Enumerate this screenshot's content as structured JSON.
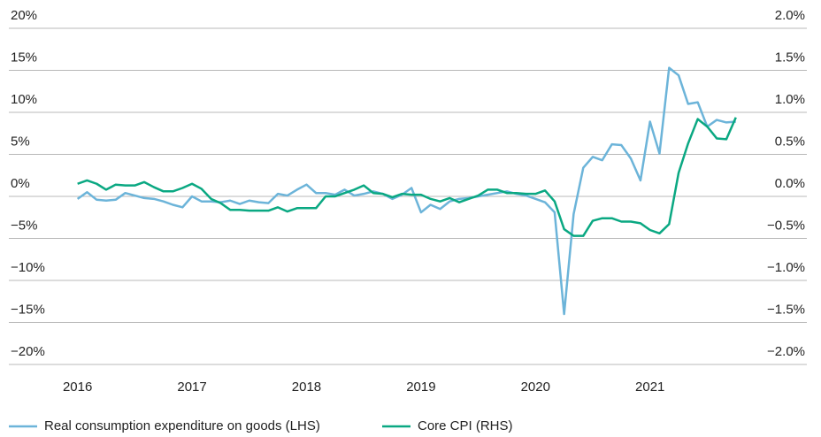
{
  "chart_data": {
    "type": "line",
    "x": [
      2016.0,
      2016.083,
      2016.167,
      2016.25,
      2016.333,
      2016.417,
      2016.5,
      2016.583,
      2016.667,
      2016.75,
      2016.833,
      2016.917,
      2017.0,
      2017.083,
      2017.167,
      2017.25,
      2017.333,
      2017.417,
      2017.5,
      2017.583,
      2017.667,
      2017.75,
      2017.833,
      2017.917,
      2018.0,
      2018.083,
      2018.167,
      2018.25,
      2018.333,
      2018.417,
      2018.5,
      2018.583,
      2018.667,
      2018.75,
      2018.833,
      2018.917,
      2019.0,
      2019.083,
      2019.167,
      2019.25,
      2019.333,
      2019.417,
      2019.5,
      2019.583,
      2019.667,
      2019.75,
      2019.833,
      2019.917,
      2020.0,
      2020.083,
      2020.167,
      2020.25,
      2020.333,
      2020.417,
      2020.5,
      2020.583,
      2020.667,
      2020.75,
      2020.833,
      2020.917,
      2021.0,
      2021.083,
      2021.167,
      2021.25,
      2021.333,
      2021.417,
      2021.5,
      2021.583,
      2021.667,
      2021.75
    ],
    "series": [
      {
        "name": "Real consumption expenditure on goods (LHS)",
        "color": "#6cb4d9",
        "axis": "y",
        "values": [
          -0.3,
          0.5,
          -0.4,
          -0.5,
          -0.4,
          0.4,
          0.1,
          -0.2,
          -0.3,
          -0.6,
          -1.0,
          -1.3,
          0.0,
          -0.6,
          -0.6,
          -0.7,
          -0.5,
          -0.9,
          -0.5,
          -0.7,
          -0.8,
          0.3,
          0.1,
          0.8,
          1.4,
          0.4,
          0.4,
          0.2,
          0.8,
          0.1,
          0.3,
          0.6,
          0.3,
          -0.3,
          0.2,
          1.0,
          -1.9,
          -1.0,
          -1.5,
          -0.6,
          -0.3,
          -0.2,
          0.0,
          0.2,
          0.4,
          0.6,
          0.3,
          0.1,
          -0.3,
          -0.7,
          -1.9,
          -14.0,
          -2.1,
          3.4,
          4.7,
          4.3,
          6.2,
          6.1,
          4.5,
          1.9,
          8.9,
          5.1,
          15.3,
          14.4,
          11.0,
          11.2,
          8.3,
          9.1,
          8.8,
          8.9
        ]
      },
      {
        "name": "Core CPI (RHS)",
        "color": "#0aa882",
        "axis": "y2",
        "values": [
          0.15,
          0.19,
          0.15,
          0.08,
          0.14,
          0.13,
          0.13,
          0.17,
          0.11,
          0.06,
          0.06,
          0.1,
          0.15,
          0.09,
          -0.03,
          -0.08,
          -0.16,
          -0.16,
          -0.17,
          -0.17,
          -0.17,
          -0.13,
          -0.18,
          -0.14,
          -0.14,
          -0.14,
          0.0,
          0.0,
          0.04,
          0.08,
          0.13,
          0.04,
          0.03,
          -0.01,
          0.03,
          0.02,
          0.02,
          -0.03,
          -0.06,
          -0.02,
          -0.07,
          -0.03,
          0.01,
          0.08,
          0.08,
          0.04,
          0.04,
          0.03,
          0.03,
          0.07,
          -0.06,
          -0.39,
          -0.47,
          -0.47,
          -0.29,
          -0.26,
          -0.26,
          -0.3,
          -0.3,
          -0.32,
          -0.4,
          -0.44,
          -0.33,
          0.28,
          0.63,
          0.92,
          0.83,
          0.69,
          0.68,
          0.94
        ]
      }
    ],
    "xlim": [
      2015.4,
      2022.37
    ],
    "xticks": [
      2016,
      2017,
      2018,
      2019,
      2020,
      2021
    ],
    "ylim": [
      -20,
      20
    ],
    "yticks": [
      {
        "value": 20,
        "label": "20%"
      },
      {
        "value": 15,
        "label": "15%"
      },
      {
        "value": 10,
        "label": "10%"
      },
      {
        "value": 5,
        "label": "5%"
      },
      {
        "value": 0,
        "label": "0%"
      },
      {
        "value": -5,
        "label": "−5%"
      },
      {
        "value": -10,
        "label": "−10%"
      },
      {
        "value": -15,
        "label": "−15%"
      },
      {
        "value": -20,
        "label": "−20%"
      }
    ],
    "y2lim": [
      -2,
      2
    ],
    "y2ticks": [
      {
        "value": 2,
        "label": "2.0%"
      },
      {
        "value": 1.5,
        "label": "1.5%"
      },
      {
        "value": 1,
        "label": "1.0%"
      },
      {
        "value": 0.5,
        "label": "0.5%"
      },
      {
        "value": 0,
        "label": "0.0%"
      },
      {
        "value": -0.5,
        "label": "−0.5%"
      },
      {
        "value": -1,
        "label": "−1.0%"
      },
      {
        "value": -1.5,
        "label": "−1.5%"
      },
      {
        "value": -2,
        "label": "−2.0%"
      }
    ],
    "grid": true
  }
}
